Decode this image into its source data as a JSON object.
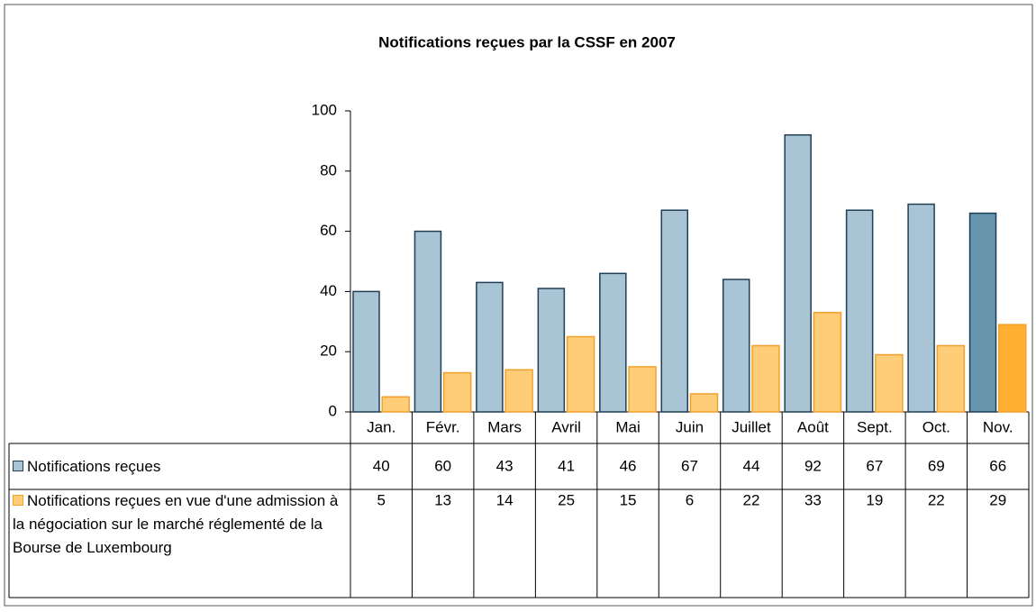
{
  "chart_data": {
    "type": "bar",
    "title": "Notifications reçues par la CSSF en 2007",
    "categories": [
      "Jan.",
      "Févr.",
      "Mars",
      "Avril",
      "Mai",
      "Juin",
      "Juillet",
      "Août",
      "Sept.",
      "Oct.",
      "Nov."
    ],
    "series": [
      {
        "name": "Notifications reçues",
        "color": "#a9c4d4",
        "stroke": "#1f3f55",
        "colors": [
          "#a9c4d4",
          "#a9c4d4",
          "#a9c4d4",
          "#a9c4d4",
          "#a9c4d4",
          "#a9c4d4",
          "#a9c4d4",
          "#a9c4d4",
          "#a9c4d4",
          "#a9c4d4",
          "#6795ae"
        ],
        "values": [
          40,
          60,
          43,
          41,
          46,
          67,
          44,
          92,
          67,
          69,
          66
        ]
      },
      {
        "name": "Notifications reçues en vue d'une admission à la négociation sur le marché réglementé de la Bourse de Luxembourg",
        "color": "#ffcc77",
        "stroke": "#f2a12e",
        "colors": [
          "#ffcc77",
          "#ffcc77",
          "#ffcc77",
          "#ffcc77",
          "#ffcc77",
          "#ffcc77",
          "#ffcc77",
          "#ffcc77",
          "#ffcc77",
          "#ffcc77",
          "#ffb030"
        ],
        "values": [
          5,
          13,
          14,
          25,
          15,
          6,
          22,
          33,
          19,
          22,
          29
        ]
      }
    ],
    "ylim": [
      0,
      100
    ],
    "yticks": [
      0,
      20,
      40,
      60,
      80,
      100
    ],
    "grid": false,
    "data_table": true
  }
}
